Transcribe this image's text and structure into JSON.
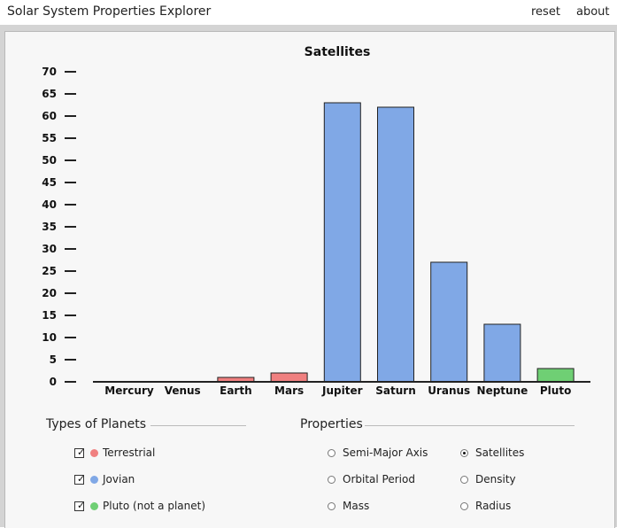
{
  "app": {
    "title": "Solar System Properties Explorer",
    "reset_label": "reset",
    "about_label": "about"
  },
  "chart_data": {
    "type": "bar",
    "title": "Satellites",
    "xlabel": "",
    "ylabel": "",
    "ylim": [
      0,
      70
    ],
    "yticks": [
      0,
      5,
      10,
      15,
      20,
      25,
      30,
      35,
      40,
      45,
      50,
      55,
      60,
      65,
      70
    ],
    "categories": [
      "Mercury",
      "Venus",
      "Earth",
      "Mars",
      "Jupiter",
      "Saturn",
      "Uranus",
      "Neptune",
      "Pluto"
    ],
    "values": [
      0,
      0,
      1,
      2,
      63,
      62,
      27,
      13,
      3
    ],
    "types": [
      "terrestrial",
      "terrestrial",
      "terrestrial",
      "terrestrial",
      "jovian",
      "jovian",
      "jovian",
      "jovian",
      "pluto"
    ],
    "grid": false
  },
  "colors": {
    "terrestrial": "#f08080",
    "jovian": "#80a8e6",
    "pluto": "#6fcf74"
  },
  "types_group": {
    "title": "Types of Planets",
    "items": [
      {
        "label": "Terrestrial",
        "checked": true,
        "color": "#f08080"
      },
      {
        "label": "Jovian",
        "checked": true,
        "color": "#80a8e6"
      },
      {
        "label": "Pluto (not a planet)",
        "checked": true,
        "color": "#6fcf74"
      }
    ]
  },
  "properties_group": {
    "title": "Properties",
    "options": [
      {
        "label": "Semi-Major Axis",
        "selected": false
      },
      {
        "label": "Orbital Period",
        "selected": false
      },
      {
        "label": "Mass",
        "selected": false
      },
      {
        "label": "Satellites",
        "selected": true
      },
      {
        "label": "Density",
        "selected": false
      },
      {
        "label": "Radius",
        "selected": false
      }
    ]
  }
}
